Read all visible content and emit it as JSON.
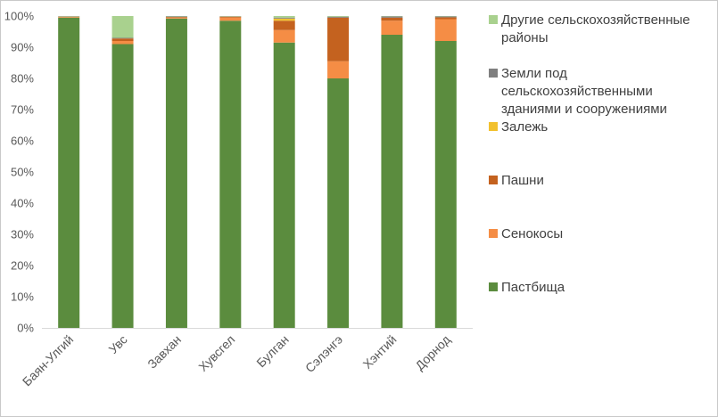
{
  "chart_data": {
    "type": "bar",
    "stacked": "percent",
    "categories": [
      "Баян-Улгий",
      "Увс",
      "Завхан",
      "Хувсгел",
      "Булган",
      "Сэлэнгэ",
      "Хэнтий",
      "Дорнод"
    ],
    "series": [
      {
        "name": "Пастбища",
        "color": "#5b8c3e",
        "values": [
          99.5,
          91.0,
          99.2,
          98.5,
          91.5,
          80.0,
          94.0,
          92.0
        ]
      },
      {
        "name": "Сенокосы",
        "color": "#f58d45",
        "values": [
          0.2,
          1.0,
          0.3,
          1.0,
          4.0,
          5.5,
          4.5,
          7.0
        ]
      },
      {
        "name": "Пашни",
        "color": "#c4621f",
        "values": [
          0.1,
          0.8,
          0.2,
          0.3,
          3.0,
          14.0,
          1.0,
          0.6
        ]
      },
      {
        "name": "Залежь",
        "color": "#f2c12e",
        "values": [
          0.0,
          0.0,
          0.0,
          0.0,
          0.7,
          0.0,
          0.0,
          0.0
        ]
      },
      {
        "name": "Земли под сельскохозяйственными зданиями и сооружениями",
        "color": "#7f7f7f",
        "values": [
          0.1,
          0.2,
          0.2,
          0.1,
          0.3,
          0.3,
          0.4,
          0.3
        ]
      },
      {
        "name": "Другие сельскохозяйственные районы",
        "color": "#a9d18e",
        "values": [
          0.1,
          7.0,
          0.1,
          0.1,
          0.5,
          0.2,
          0.1,
          0.1
        ]
      }
    ],
    "y_ticks": [
      "0%",
      "10%",
      "20%",
      "30%",
      "40%",
      "50%",
      "60%",
      "70%",
      "80%",
      "90%",
      "100%"
    ],
    "ylim": [
      0,
      100
    ],
    "grid": false,
    "legend_position": "right",
    "legend_order": [
      5,
      4,
      3,
      2,
      1,
      0
    ],
    "legend_lines": [
      [
        "Другие сельскохозяйственные",
        "районы"
      ],
      [
        "Земли под",
        "сельскохозяйственными",
        "зданиями и сооружениями"
      ],
      [
        "Залежь"
      ],
      [
        "Пашни"
      ],
      [
        "Сенокосы"
      ],
      [
        "Пастбища"
      ]
    ],
    "title": "",
    "xlabel": "",
    "ylabel": ""
  }
}
